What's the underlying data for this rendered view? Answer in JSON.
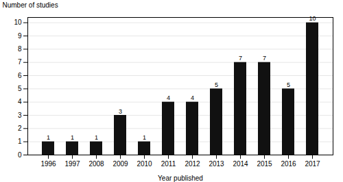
{
  "chart_data": {
    "type": "bar",
    "categories": [
      "1996",
      "1997",
      "2008",
      "2009",
      "2010",
      "2011",
      "2012",
      "2013",
      "2014",
      "2015",
      "2016",
      "2017"
    ],
    "values": [
      1,
      1,
      1,
      3,
      1,
      4,
      4,
      5,
      7,
      7,
      5,
      10
    ],
    "color": "#111111",
    "xlabel": "Year published",
    "ylabel": "Number of studies",
    "ylim": [
      0,
      10.4
    ],
    "yticks": [
      0,
      1,
      2,
      3,
      4,
      5,
      6,
      7,
      8,
      9,
      10
    ],
    "grid": true,
    "data_labels": true
  }
}
